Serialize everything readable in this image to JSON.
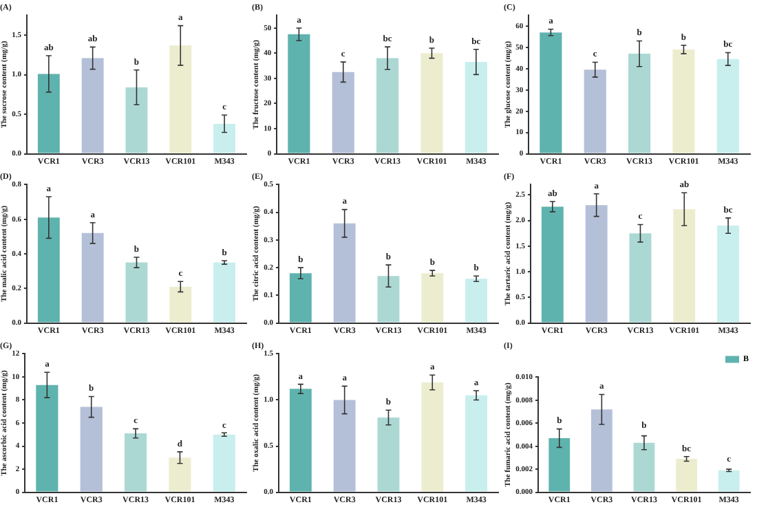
{
  "chart_data": [
    {
      "type": "bar",
      "title": "(A)",
      "ylabel": "The sucrose content (mg/g)",
      "categories": [
        "VCR1",
        "VCR3",
        "VCR13",
        "VCR101",
        "M343"
      ],
      "series": [
        {
          "colors": [
            "#5fb3ae",
            "#b4c0d8",
            "#acd8d4",
            "#ecedcf",
            "#c9eeee"
          ],
          "values": [
            1.01,
            1.21,
            0.84,
            1.37,
            0.38
          ],
          "errors": [
            0.23,
            0.14,
            0.22,
            0.25,
            0.11
          ]
        }
      ],
      "ylim": [
        0,
        1.75
      ],
      "yticks": [
        {
          "value": 0,
          "label": "0.0"
        },
        {
          "value": 0.5,
          "label": "0.5"
        },
        {
          "value": 1,
          "label": "1.0"
        },
        {
          "value": 1.5,
          "label": "1.5"
        }
      ],
      "grid": false,
      "annotations": [
        {
          "text": "ab",
          "x": "VCR1",
          "y": 1.24
        },
        {
          "text": "ab",
          "x": "VCR3",
          "y": 1.35
        },
        {
          "text": "b",
          "x": "VCR13",
          "y": 1.06
        },
        {
          "text": "a",
          "x": "VCR101",
          "y": 1.62
        },
        {
          "text": "c",
          "x": "M343",
          "y": 0.49
        }
      ]
    },
    {
      "type": "bar",
      "title": "(B)",
      "ylabel": "The fructose content (mg/g)",
      "categories": [
        "VCR1",
        "VCR3",
        "VCR13",
        "VCR101",
        "M343"
      ],
      "series": [
        {
          "colors": [
            "#5fb3ae",
            "#b4c0d8",
            "#acd8d4",
            "#ecedcf",
            "#c9eeee"
          ],
          "values": [
            47.5,
            32.5,
            38,
            40,
            36.5
          ],
          "errors": [
            2.5,
            4,
            4.5,
            2,
            5
          ]
        }
      ],
      "ylim": [
        0,
        55
      ],
      "yticks": [
        0,
        10,
        20,
        30,
        40,
        50
      ],
      "grid": false,
      "annotations": [
        {
          "text": "a",
          "x": "VCR1",
          "y": 50
        },
        {
          "text": "c",
          "x": "VCR3",
          "y": 36.5
        },
        {
          "text": "bc",
          "x": "VCR13",
          "y": 42.5
        },
        {
          "text": "b",
          "x": "VCR101",
          "y": 42
        },
        {
          "text": "bc",
          "x": "M343",
          "y": 41.5
        }
      ]
    },
    {
      "type": "bar",
      "title": "(C)",
      "ylabel": "The glucose content (mg/g)",
      "categories": [
        "VCR1",
        "VCR3",
        "VCR13",
        "VCR101",
        "M343"
      ],
      "series": [
        {
          "colors": [
            "#5fb3ae",
            "#b4c0d8",
            "#acd8d4",
            "#ecedcf",
            "#c9eeee"
          ],
          "values": [
            57,
            39.5,
            47,
            49,
            44.5
          ],
          "errors": [
            1.5,
            3.5,
            6,
            2,
            3
          ]
        }
      ],
      "ylim": [
        0,
        65
      ],
      "yticks": [
        0,
        10,
        20,
        30,
        40,
        50,
        60
      ],
      "grid": false,
      "annotations": [
        {
          "text": "a",
          "x": "VCR1",
          "y": 58.5
        },
        {
          "text": "c",
          "x": "VCR3",
          "y": 43
        },
        {
          "text": "b",
          "x": "VCR13",
          "y": 53
        },
        {
          "text": "b",
          "x": "VCR101",
          "y": 51
        },
        {
          "text": "bc",
          "x": "M343",
          "y": 47.5
        }
      ]
    },
    {
      "type": "bar",
      "title": "(D)",
      "ylabel": "The malic acid content (mg/g)",
      "categories": [
        "VCR1",
        "VCR3",
        "VCR13",
        "VCR101",
        "M343"
      ],
      "series": [
        {
          "colors": [
            "#5fb3ae",
            "#b4c0d8",
            "#acd8d4",
            "#ecedcf",
            "#c9eeee"
          ],
          "values": [
            0.61,
            0.52,
            0.35,
            0.21,
            0.35
          ],
          "errors": [
            0.12,
            0.06,
            0.03,
            0.03,
            0.01
          ]
        }
      ],
      "ylim": [
        0,
        0.8
      ],
      "yticks": [
        {
          "value": 0,
          "label": "0.0"
        },
        0.2,
        0.4,
        0.6,
        0.8
      ],
      "grid": false,
      "annotations": [
        {
          "text": "a",
          "x": "VCR1",
          "y": 0.73
        },
        {
          "text": "a",
          "x": "VCR3",
          "y": 0.58
        },
        {
          "text": "b",
          "x": "VCR13",
          "y": 0.38
        },
        {
          "text": "c",
          "x": "VCR101",
          "y": 0.24
        },
        {
          "text": "b",
          "x": "M343",
          "y": 0.36
        }
      ]
    },
    {
      "type": "bar",
      "title": "(E)",
      "ylabel": "The citric acid content (mg/g)",
      "categories": [
        "VCR1",
        "VCR3",
        "VCR13",
        "VCR101",
        "M343"
      ],
      "series": [
        {
          "colors": [
            "#5fb3ae",
            "#b4c0d8",
            "#acd8d4",
            "#ecedcf",
            "#c9eeee"
          ],
          "values": [
            0.18,
            0.36,
            0.17,
            0.18,
            0.16
          ],
          "errors": [
            0.02,
            0.05,
            0.04,
            0.01,
            0.01
          ]
        }
      ],
      "ylim": [
        0,
        0.5
      ],
      "yticks": [
        {
          "value": 0,
          "label": "0.0"
        },
        0.1,
        0.2,
        0.3,
        0.4,
        0.5
      ],
      "grid": false,
      "annotations": [
        {
          "text": "b",
          "x": "VCR1",
          "y": 0.2
        },
        {
          "text": "a",
          "x": "VCR3",
          "y": 0.41
        },
        {
          "text": "b",
          "x": "VCR13",
          "y": 0.21
        },
        {
          "text": "b",
          "x": "VCR101",
          "y": 0.19
        },
        {
          "text": "b",
          "x": "M343",
          "y": 0.17
        }
      ]
    },
    {
      "type": "bar",
      "title": "(F)",
      "ylabel": "The tartaric acid content (mg/g)",
      "categories": [
        "VCR1",
        "VCR3",
        "VCR13",
        "VCR101",
        "M343"
      ],
      "series": [
        {
          "colors": [
            "#5fb3ae",
            "#b4c0d8",
            "#acd8d4",
            "#ecedcf",
            "#c9eeee"
          ],
          "values": [
            2.27,
            2.3,
            1.75,
            2.22,
            1.9
          ],
          "errors": [
            0.1,
            0.22,
            0.17,
            0.32,
            0.15
          ]
        }
      ],
      "ylim": [
        0,
        2.7
      ],
      "yticks": [
        {
          "value": 0,
          "label": "0.0"
        },
        0.5,
        {
          "value": 1,
          "label": "1.0"
        },
        1.5,
        {
          "value": 2,
          "label": "2.0"
        },
        2.5
      ],
      "grid": false,
      "annotations": [
        {
          "text": "ab",
          "x": "VCR1",
          "y": 2.37
        },
        {
          "text": "a",
          "x": "VCR3",
          "y": 2.52
        },
        {
          "text": "c",
          "x": "VCR13",
          "y": 1.92
        },
        {
          "text": "ab",
          "x": "VCR101",
          "y": 2.54
        },
        {
          "text": "bc",
          "x": "M343",
          "y": 2.05
        }
      ]
    },
    {
      "type": "bar",
      "title": "(G)",
      "ylabel": "The ascorbic acid content (mg/g)",
      "categories": [
        "VCR1",
        "VCR3",
        "VCR13",
        "VCR101",
        "M343"
      ],
      "series": [
        {
          "colors": [
            "#5fb3ae",
            "#b4c0d8",
            "#acd8d4",
            "#ecedcf",
            "#c9eeee"
          ],
          "values": [
            9.3,
            7.4,
            5.1,
            3.0,
            5.0
          ],
          "errors": [
            1.1,
            0.9,
            0.4,
            0.5,
            0.15
          ]
        }
      ],
      "ylim": [
        0,
        12
      ],
      "yticks": [
        0,
        2,
        4,
        6,
        8,
        10,
        12
      ],
      "grid": false,
      "annotations": [
        {
          "text": "a",
          "x": "VCR1",
          "y": 10.4
        },
        {
          "text": "b",
          "x": "VCR3",
          "y": 8.3
        },
        {
          "text": "c",
          "x": "VCR13",
          "y": 5.5
        },
        {
          "text": "d",
          "x": "VCR101",
          "y": 3.5
        },
        {
          "text": "c",
          "x": "M343",
          "y": 5.1
        }
      ]
    },
    {
      "type": "bar",
      "title": "(H)",
      "ylabel": "The oxalic acid content (mg/g)",
      "categories": [
        "VCR1",
        "VCR3",
        "VCR13",
        "VCR101",
        "M343"
      ],
      "series": [
        {
          "colors": [
            "#5fb3ae",
            "#b4c0d8",
            "#acd8d4",
            "#ecedcf",
            "#c9eeee"
          ],
          "values": [
            1.12,
            1.0,
            0.81,
            1.19,
            1.05
          ],
          "errors": [
            0.05,
            0.15,
            0.08,
            0.08,
            0.05
          ]
        }
      ],
      "ylim": [
        0,
        1.5
      ],
      "yticks": [
        {
          "value": 0,
          "label": "0.0"
        },
        0.5,
        {
          "value": 1,
          "label": "1.0"
        },
        1.5
      ],
      "grid": false,
      "annotations": [
        {
          "text": "a",
          "x": "VCR1",
          "y": 1.17
        },
        {
          "text": "a",
          "x": "VCR3",
          "y": 1.15
        },
        {
          "text": "b",
          "x": "VCR13",
          "y": 0.89
        },
        {
          "text": "a",
          "x": "VCR101",
          "y": 1.27
        },
        {
          "text": "a",
          "x": "M343",
          "y": 1.1
        }
      ]
    },
    {
      "type": "bar",
      "title": "(I)",
      "ylabel": "The fumaric acid content (mg/g)",
      "categories": [
        "VCR1",
        "VCR3",
        "VCR13",
        "VCR101",
        "M343"
      ],
      "series": [
        {
          "name": "B",
          "color": "#5fb3ae",
          "colors": [
            "#5fb3ae",
            "#b4c0d8",
            "#acd8d4",
            "#ecedcf",
            "#c9eeee"
          ],
          "values": [
            0.0047,
            0.0072,
            0.0043,
            0.0029,
            0.0019
          ],
          "errors": [
            0.0008,
            0.0013,
            0.0006,
            0.0002,
            0.0001
          ]
        }
      ],
      "ylim": [
        0,
        0.01
      ],
      "yticks": [
        {
          "value": 0,
          "label": "0.000"
        },
        {
          "value": 0.002,
          "label": "0.002"
        },
        {
          "value": 0.004,
          "label": "0.004"
        },
        {
          "value": 0.006,
          "label": "0.006"
        },
        {
          "value": 0.008,
          "label": "0.008"
        },
        {
          "value": 0.01,
          "label": "0.010"
        }
      ],
      "grid": false,
      "legend": "top right",
      "annotations": [
        {
          "text": "b",
          "x": "VCR1",
          "y": 0.0055
        },
        {
          "text": "a",
          "x": "VCR3",
          "y": 0.0085
        },
        {
          "text": "b",
          "x": "VCR13",
          "y": 0.0051
        },
        {
          "text": "bc",
          "x": "VCR101",
          "y": 0.0031
        },
        {
          "text": "c",
          "x": "M343",
          "y": 0.0022
        }
      ]
    }
  ]
}
